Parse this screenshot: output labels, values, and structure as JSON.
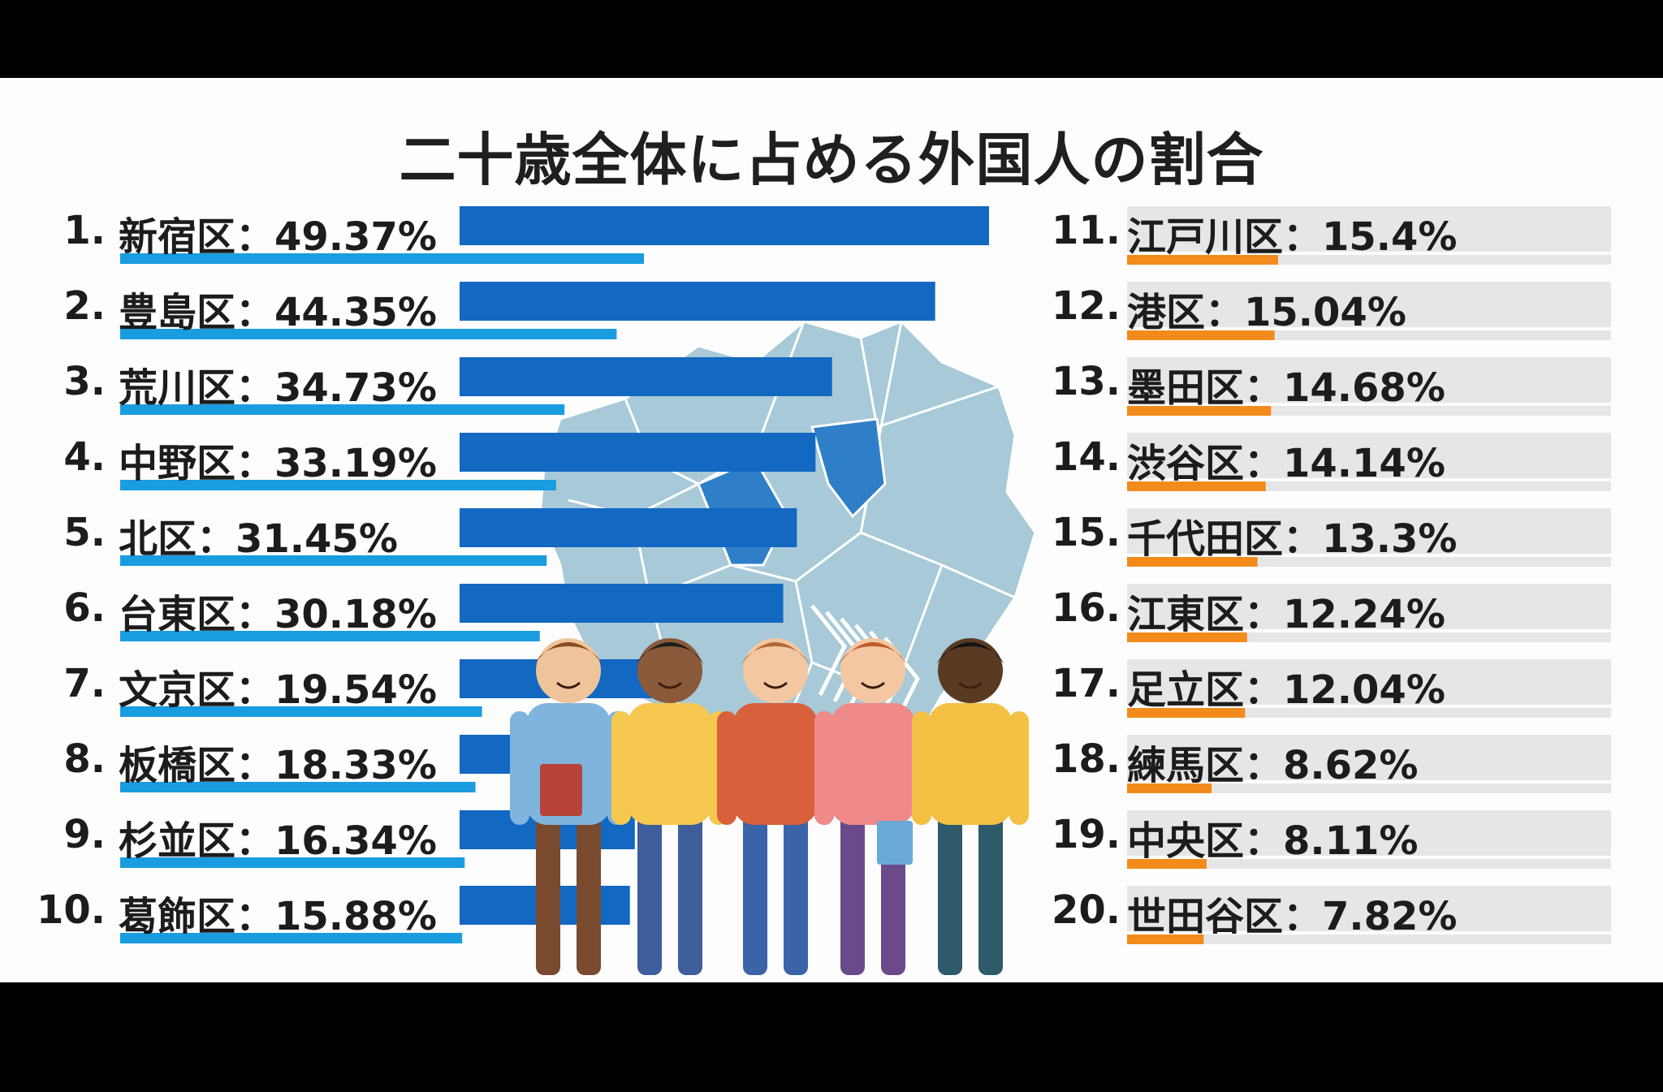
{
  "title": "二十歳全体に占める外国人の割合",
  "colors": {
    "left_bar": "#1368c2",
    "left_underline": "#1a9ce0",
    "right_track": "#e6e6e6",
    "right_underline": "#f28b1c",
    "map_fill": "#a7c9d8",
    "map_highlight": "#2f7fc8"
  },
  "chart_data": {
    "type": "bar",
    "title": "二十歳全体に占める外国人の割合",
    "unit": "%",
    "grid": false,
    "xlim": [
      0,
      49.37
    ],
    "ranks": [
      "1.",
      "2.",
      "3.",
      "4.",
      "5.",
      "6.",
      "7.",
      "8.",
      "9.",
      "10.",
      "11.",
      "12.",
      "13.",
      "14.",
      "15.",
      "16.",
      "17.",
      "18.",
      "19.",
      "20."
    ],
    "categories": [
      "新宿区",
      "豊島区",
      "荒川区",
      "中野区",
      "北区",
      "台東区",
      "文京区",
      "板橋区",
      "杉並区",
      "葛飾区",
      "江戸川区",
      "港区",
      "墨田区",
      "渋谷区",
      "千代田区",
      "江東区",
      "足立区",
      "練馬区",
      "中央区",
      "世田谷区"
    ],
    "value_labels": [
      "49.37%",
      "44.35%",
      "34.73%",
      "33.19%",
      "31.45%",
      "30.18%",
      "19.54%",
      "18.33%",
      "16.34%",
      "15.88%",
      "15.4%",
      "15.04%",
      "14.68%",
      "14.14%",
      "13.3%",
      "12.24%",
      "12.04%",
      "8.62%",
      "8.11%",
      "7.82%"
    ],
    "values": [
      49.37,
      44.35,
      34.73,
      33.19,
      31.45,
      30.18,
      19.54,
      18.33,
      16.34,
      15.88,
      15.4,
      15.04,
      14.68,
      14.14,
      13.3,
      12.24,
      12.04,
      8.62,
      8.11,
      7.82
    ],
    "separator": "："
  }
}
